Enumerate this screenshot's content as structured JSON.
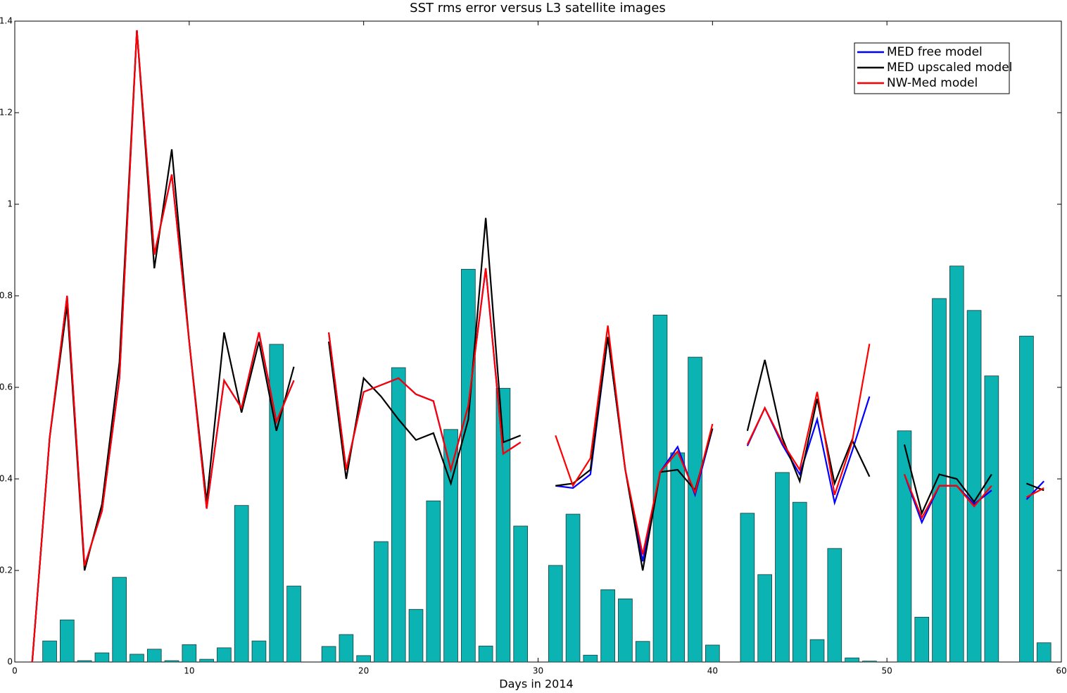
{
  "chart_data": {
    "type": "combo",
    "title": "SST rms error versus L3 satellite images",
    "x_label": "Days in 2014",
    "x": [
      1,
      2,
      3,
      4,
      5,
      6,
      7,
      8,
      9,
      10,
      11,
      12,
      13,
      14,
      15,
      16,
      17,
      18,
      19,
      20,
      21,
      22,
      23,
      24,
      25,
      26,
      27,
      28,
      29,
      30,
      31,
      32,
      33,
      34,
      35,
      36,
      37,
      38,
      39,
      40,
      41,
      42,
      43,
      44,
      45,
      46,
      47,
      48,
      49,
      50,
      51,
      52,
      53,
      54,
      55,
      56,
      57,
      58,
      59
    ],
    "bar_values": [
      null,
      0.046,
      0.092,
      0.003,
      0.02,
      0.185,
      0.017,
      0.028,
      0.003,
      0.038,
      0.006,
      0.031,
      0.342,
      0.046,
      0.694,
      0.166,
      null,
      0.034,
      0.06,
      0.014,
      0.263,
      0.643,
      0.115,
      0.352,
      0.508,
      0.858,
      0.035,
      0.598,
      0.297,
      null,
      0.211,
      0.323,
      0.015,
      0.158,
      0.138,
      0.045,
      0.758,
      0.457,
      0.666,
      0.037,
      null,
      0.325,
      0.191,
      0.414,
      0.349,
      0.049,
      0.248,
      0.009,
      0.002,
      null,
      0.505,
      0.098,
      0.794,
      0.865,
      0.768,
      0.625,
      null,
      0.712,
      0.042
    ],
    "bar_color": "#0bb3b3",
    "series": [
      {
        "name": "MED free model",
        "color": "#0000ff",
        "values": [
          0,
          0.49,
          0.8,
          0.21,
          0.33,
          0.62,
          1.38,
          0.89,
          1.065,
          0.7,
          0.335,
          0.615,
          0.555,
          0.72,
          0.525,
          0.615,
          null,
          0.72,
          0.42,
          0.59,
          0.605,
          0.62,
          0.585,
          0.57,
          0.42,
          0.56,
          0.86,
          0.455,
          0.48,
          null,
          0.385,
          0.38,
          0.41,
          0.71,
          0.42,
          0.22,
          0.415,
          0.47,
          0.365,
          0.51,
          null,
          0.472,
          0.555,
          0.475,
          0.41,
          0.53,
          0.348,
          0.46,
          0.58,
          null,
          0.41,
          0.305,
          0.385,
          0.385,
          0.345,
          0.375,
          null,
          0.355,
          0.395
        ]
      },
      {
        "name": "MED upscaled model",
        "color": "#000000",
        "values": [
          0,
          0.49,
          0.78,
          0.2,
          0.345,
          0.655,
          1.38,
          0.86,
          1.12,
          0.7,
          0.35,
          0.72,
          0.545,
          0.7,
          0.505,
          0.645,
          null,
          0.7,
          0.4,
          0.62,
          0.58,
          0.53,
          0.485,
          0.5,
          0.39,
          0.53,
          0.97,
          0.48,
          0.495,
          null,
          0.385,
          0.39,
          0.42,
          0.71,
          0.42,
          0.2,
          0.415,
          0.42,
          0.375,
          0.51,
          null,
          0.505,
          0.66,
          0.49,
          0.395,
          0.575,
          0.39,
          0.485,
          0.405,
          null,
          0.475,
          0.325,
          0.41,
          0.4,
          0.35,
          0.41,
          null,
          0.39,
          0.375
        ]
      },
      {
        "name": "NW-Med model",
        "color": "#ff0000",
        "values": [
          0,
          0.49,
          0.8,
          0.21,
          0.33,
          0.62,
          1.38,
          0.89,
          1.065,
          0.7,
          0.335,
          0.615,
          0.555,
          0.72,
          0.525,
          0.615,
          null,
          0.72,
          0.42,
          0.59,
          0.605,
          0.62,
          0.585,
          0.57,
          0.42,
          0.56,
          0.86,
          0.455,
          0.48,
          null,
          0.495,
          0.385,
          0.445,
          0.735,
          0.42,
          0.235,
          0.415,
          0.46,
          0.37,
          0.52,
          null,
          0.475,
          0.555,
          0.48,
          0.42,
          0.59,
          0.365,
          0.48,
          0.695,
          null,
          0.41,
          0.315,
          0.385,
          0.385,
          0.34,
          0.385,
          null,
          0.36,
          0.38
        ]
      }
    ],
    "xlim": [
      0,
      60
    ],
    "ylim": [
      0,
      1.4
    ],
    "xticks": [
      0,
      10,
      20,
      30,
      40,
      50,
      60
    ],
    "yticks": [
      0,
      0.2,
      0.4,
      0.6,
      0.8,
      1,
      1.2,
      1.4
    ],
    "legend": "upper right"
  }
}
